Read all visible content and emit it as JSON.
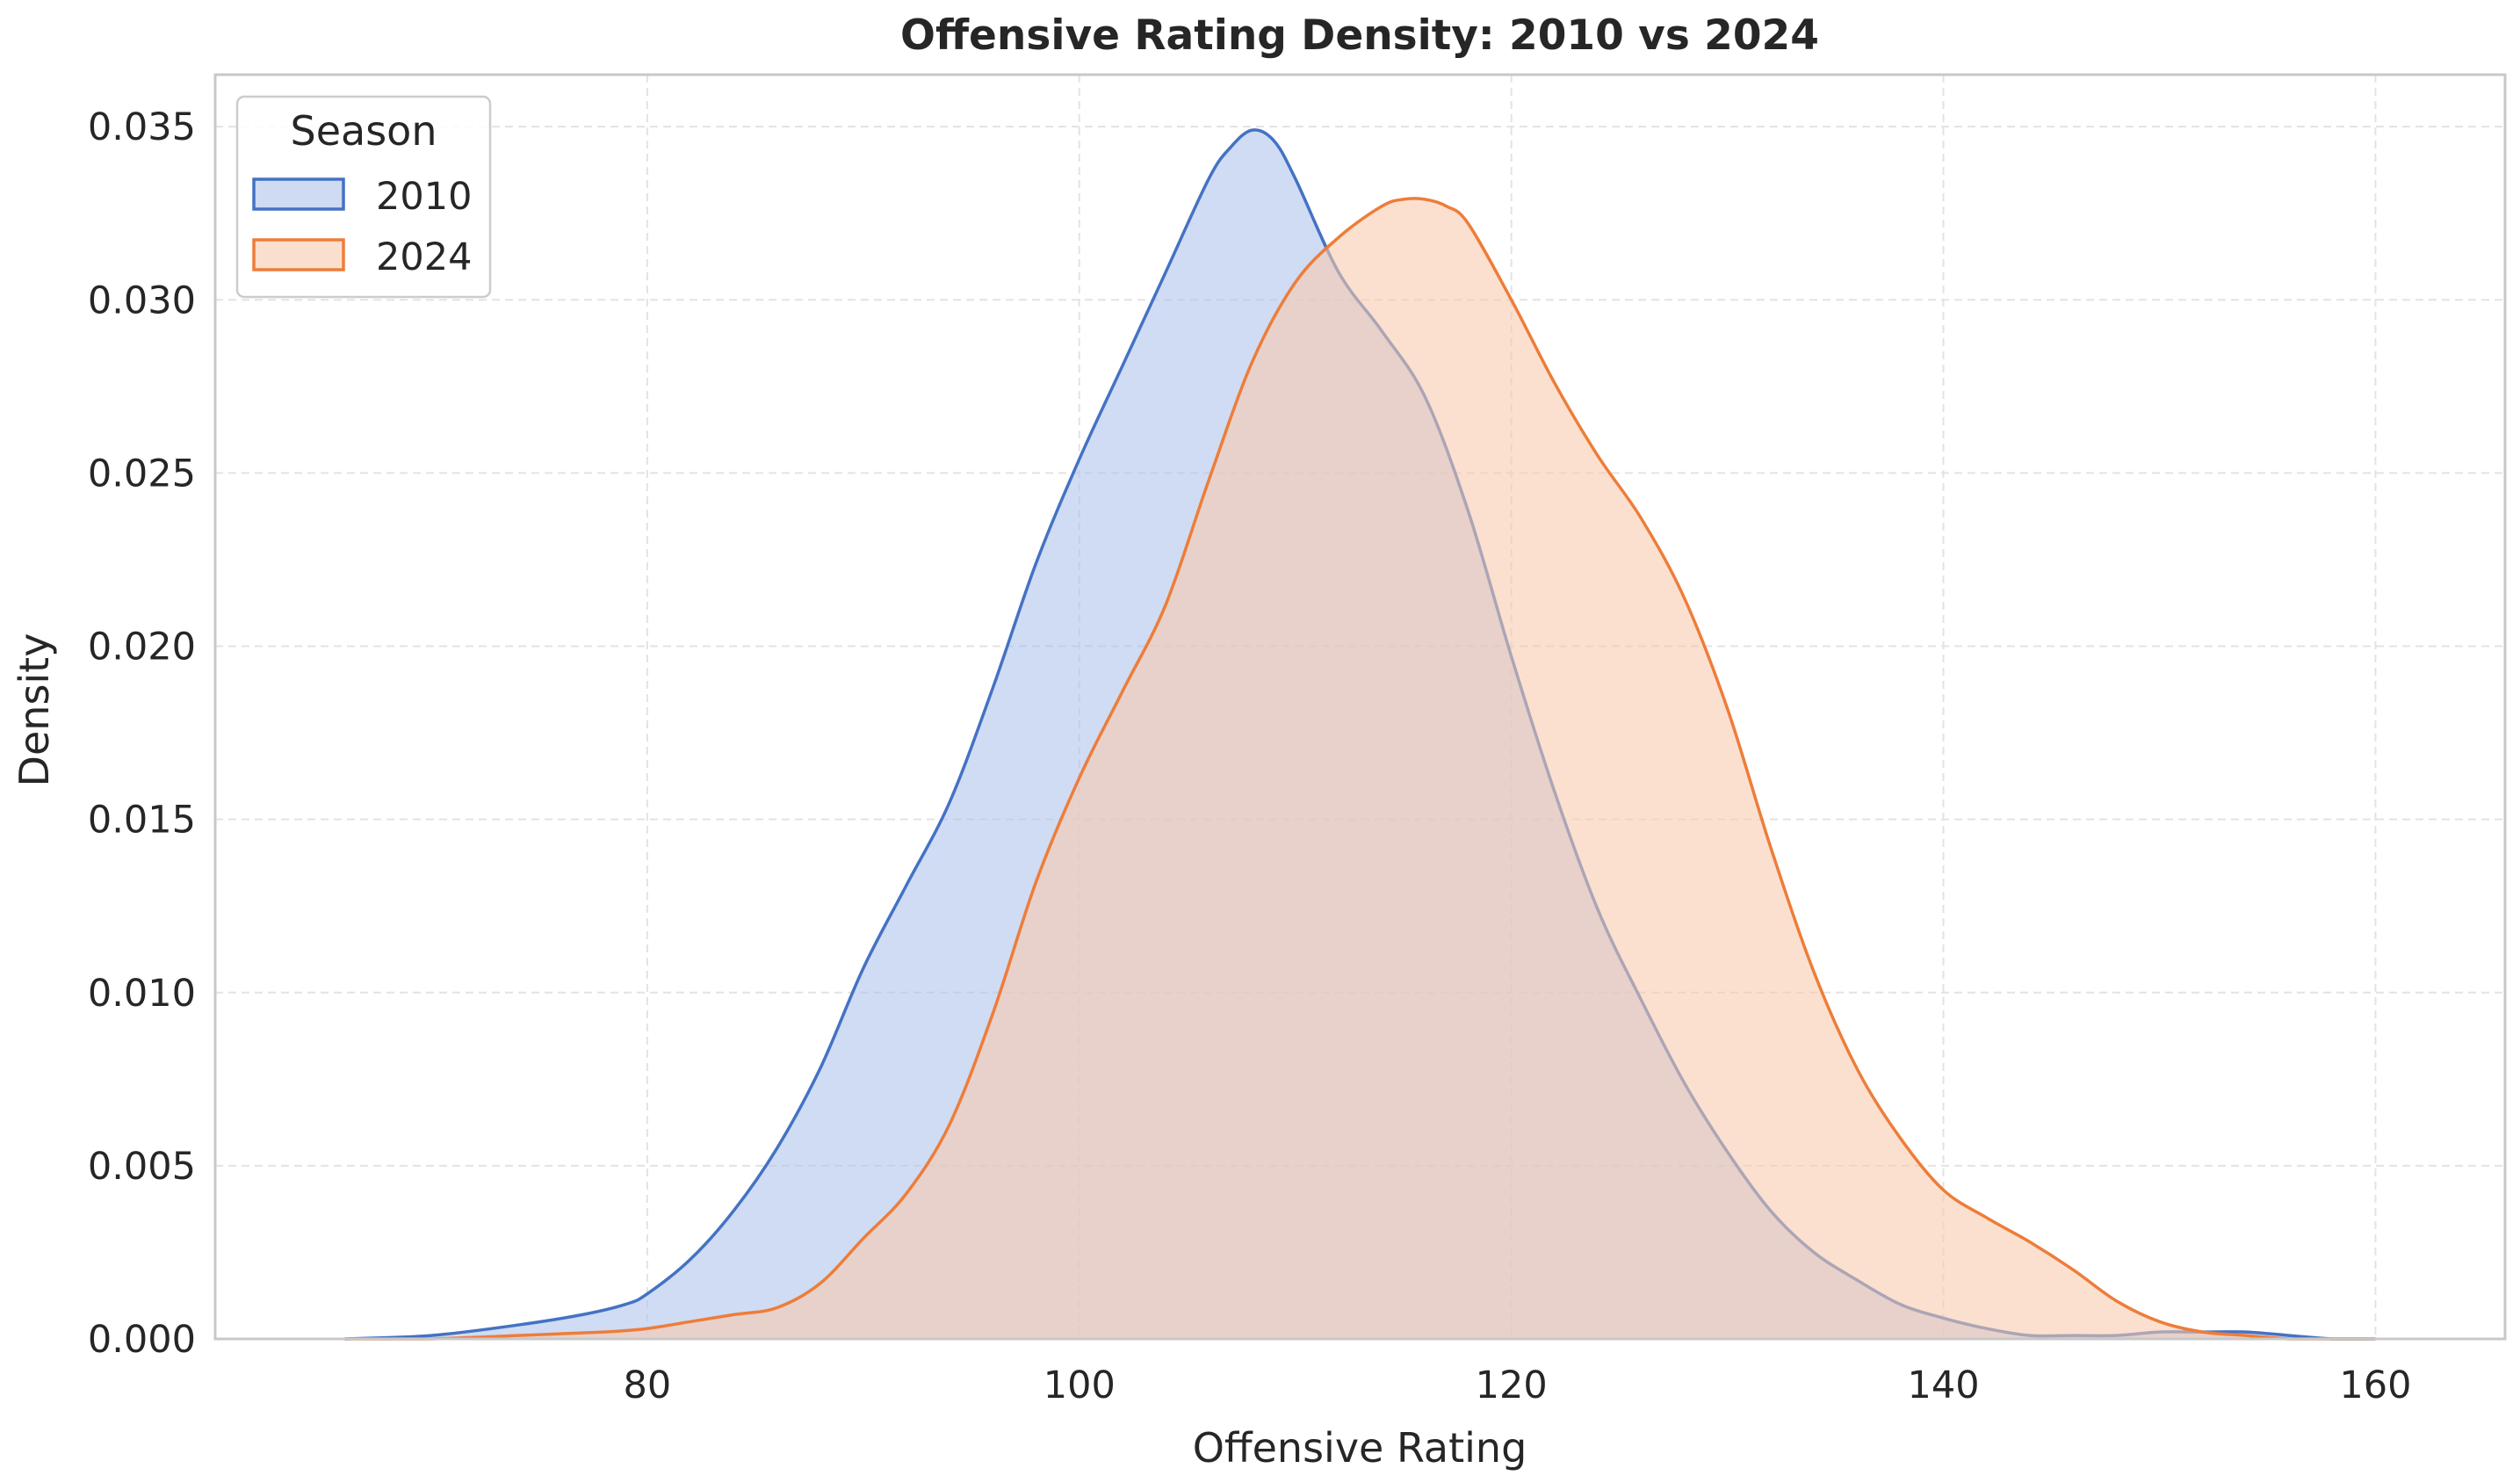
{
  "chart_data": {
    "type": "area",
    "title": "Offensive Rating Density: 2010 vs 2024",
    "xlabel": "Offensive Rating",
    "ylabel": "Density",
    "xlim": [
      60,
      166
    ],
    "ylim": [
      0,
      0.0365
    ],
    "x_ticks": [
      80,
      100,
      120,
      140,
      160
    ],
    "x_tick_labels": [
      "80",
      "100",
      "120",
      "140",
      "160"
    ],
    "y_ticks": [
      0,
      0.005,
      0.01,
      0.015,
      0.02,
      0.025,
      0.03,
      0.035
    ],
    "y_tick_labels": [
      "0.000",
      "0.005",
      "0.010",
      "0.015",
      "0.020",
      "0.025",
      "0.030",
      "0.035"
    ],
    "grid": true,
    "legend": {
      "title": "Season",
      "position": "top-left"
    },
    "series": [
      {
        "name": "2010",
        "color": "#4472c4",
        "fill": "#aec3ea",
        "x": [
          66,
          70,
          74,
          77,
          79,
          80,
          82,
          84,
          86,
          88,
          90,
          92,
          94,
          96,
          98,
          100,
          102,
          104,
          106,
          107,
          108,
          109,
          110,
          112,
          114,
          116,
          118,
          120,
          122,
          124,
          126,
          128,
          130,
          132,
          134,
          136,
          138,
          140,
          142,
          144,
          146,
          148,
          150,
          152,
          154,
          156,
          158,
          160
        ],
        "y": [
          0,
          0.0001,
          0.0004,
          0.0007,
          0.001,
          0.0013,
          0.0023,
          0.0037,
          0.0055,
          0.0078,
          0.0107,
          0.0131,
          0.0155,
          0.0188,
          0.0224,
          0.0254,
          0.0281,
          0.0308,
          0.0335,
          0.0344,
          0.0349,
          0.0346,
          0.0335,
          0.0308,
          0.0291,
          0.0272,
          0.0239,
          0.0197,
          0.0158,
          0.0124,
          0.0098,
          0.0074,
          0.0054,
          0.0037,
          0.0025,
          0.0017,
          0.001,
          0.0006,
          0.0003,
          0.0001,
          0.0001,
          0.0001,
          0.0002,
          0.0002,
          0.0002,
          0.0001,
          0,
          0
        ]
      },
      {
        "name": "2024",
        "color": "#ed7d3a",
        "fill": "#f8c9ad",
        "x": [
          66,
          70,
          74,
          78,
          80,
          82,
          84,
          86,
          88,
          90,
          92,
          94,
          96,
          98,
          100,
          102,
          104,
          106,
          108,
          110,
          112,
          114,
          115,
          116,
          117,
          118,
          120,
          122,
          124,
          126,
          128,
          130,
          132,
          134,
          136,
          138,
          140,
          142,
          144,
          146,
          148,
          150,
          152,
          154,
          156,
          158,
          160
        ],
        "y": [
          0,
          0,
          0.0001,
          0.0002,
          0.0003,
          0.0005,
          0.0007,
          0.0009,
          0.0016,
          0.0029,
          0.0042,
          0.0062,
          0.0094,
          0.0132,
          0.0162,
          0.0187,
          0.0212,
          0.0248,
          0.0282,
          0.0305,
          0.0318,
          0.0327,
          0.0329,
          0.0329,
          0.0327,
          0.0322,
          0.03,
          0.0276,
          0.0255,
          0.0237,
          0.0214,
          0.0182,
          0.0142,
          0.0106,
          0.0078,
          0.0058,
          0.0043,
          0.0035,
          0.0028,
          0.002,
          0.0011,
          0.0005,
          0.0002,
          0.0001,
          0,
          0,
          0
        ]
      }
    ]
  }
}
